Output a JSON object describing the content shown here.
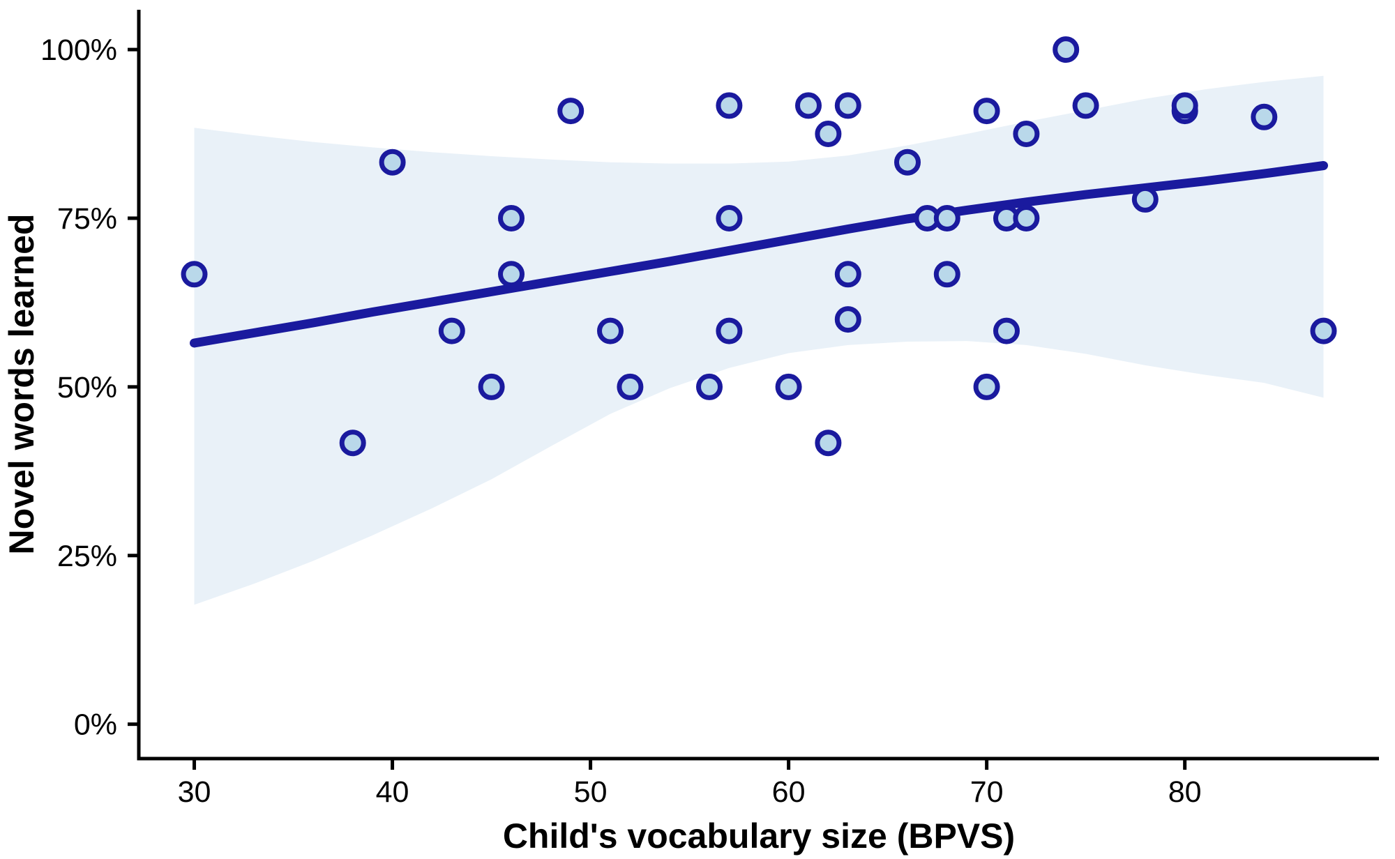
{
  "chart_data": {
    "type": "scatter",
    "title": "",
    "xlabel": "Child's vocabulary size (BPVS)",
    "ylabel": "Novel words learned",
    "x_ticks": [
      30,
      40,
      50,
      60,
      70,
      80
    ],
    "y_ticks": [
      0,
      25,
      50,
      75,
      100
    ],
    "y_tick_labels": [
      "0%",
      "25%",
      "50%",
      "75%",
      "100%"
    ],
    "x_tick_labels": [
      "30",
      "40",
      "50",
      "60",
      "70",
      "80"
    ],
    "xlim": [
      27.2,
      89.8
    ],
    "ylim": [
      -5.1,
      105.9
    ],
    "grid": "off",
    "legend": "none",
    "points": [
      [
        30,
        66.7
      ],
      [
        38,
        41.7
      ],
      [
        40,
        83.3
      ],
      [
        43,
        58.3
      ],
      [
        45,
        50
      ],
      [
        46,
        75
      ],
      [
        46,
        66.7
      ],
      [
        49,
        90.9
      ],
      [
        51,
        58.3
      ],
      [
        52,
        50
      ],
      [
        56,
        50
      ],
      [
        57,
        91.7
      ],
      [
        57,
        75
      ],
      [
        57,
        58.3
      ],
      [
        60,
        50
      ],
      [
        61,
        91.7
      ],
      [
        62,
        87.5
      ],
      [
        62,
        41.7
      ],
      [
        63,
        91.7
      ],
      [
        63,
        66.7
      ],
      [
        63,
        60
      ],
      [
        66,
        83.3
      ],
      [
        67,
        75
      ],
      [
        68,
        75
      ],
      [
        68,
        66.7
      ],
      [
        70,
        90.9
      ],
      [
        70,
        50
      ],
      [
        71,
        75
      ],
      [
        71,
        58.3
      ],
      [
        72,
        87.5
      ],
      [
        72,
        75
      ],
      [
        74,
        100
      ],
      [
        75,
        91.7
      ],
      [
        78,
        77.8
      ],
      [
        80,
        90.9
      ],
      [
        80,
        91.7
      ],
      [
        84,
        90
      ],
      [
        87,
        58.3
      ]
    ],
    "regression_line": {
      "x": [
        30,
        33,
        36,
        39,
        42,
        45,
        48,
        51,
        54,
        57,
        60,
        63,
        66,
        69,
        72,
        75,
        78,
        81,
        84,
        87
      ],
      "y": [
        56.5,
        58.0,
        59.5,
        61.1,
        62.6,
        64.1,
        65.6,
        67.1,
        68.6,
        70.2,
        71.8,
        73.4,
        74.9,
        76.2,
        77.4,
        78.5,
        79.5,
        80.5,
        81.6,
        82.8
      ]
    },
    "confidence_band": {
      "x": [
        30,
        33,
        36,
        39,
        42,
        45,
        48,
        51,
        54,
        57,
        60,
        63,
        66,
        69,
        72,
        75,
        78,
        81,
        84,
        87
      ],
      "top": [
        88.4,
        87.3,
        86.3,
        85.5,
        84.8,
        84.2,
        83.7,
        83.3,
        83.1,
        83.1,
        83.4,
        84.3,
        85.8,
        87.5,
        89.3,
        91.0,
        92.7,
        94.1,
        95.2,
        96.1
      ],
      "bottom": [
        17.7,
        20.8,
        24.2,
        28.0,
        32.0,
        36.3,
        41.2,
        46.0,
        49.8,
        52.8,
        55.0,
        56.2,
        56.7,
        56.8,
        56.2,
        54.9,
        53.2,
        51.8,
        50.6,
        48.4
      ]
    },
    "colors": {
      "line": "#1a1a9e",
      "point_fill": "#b9d8ea",
      "point_stroke": "#1a1a9e",
      "band": "#e9f1f8",
      "axis": "#000000",
      "text": "#000000"
    }
  }
}
